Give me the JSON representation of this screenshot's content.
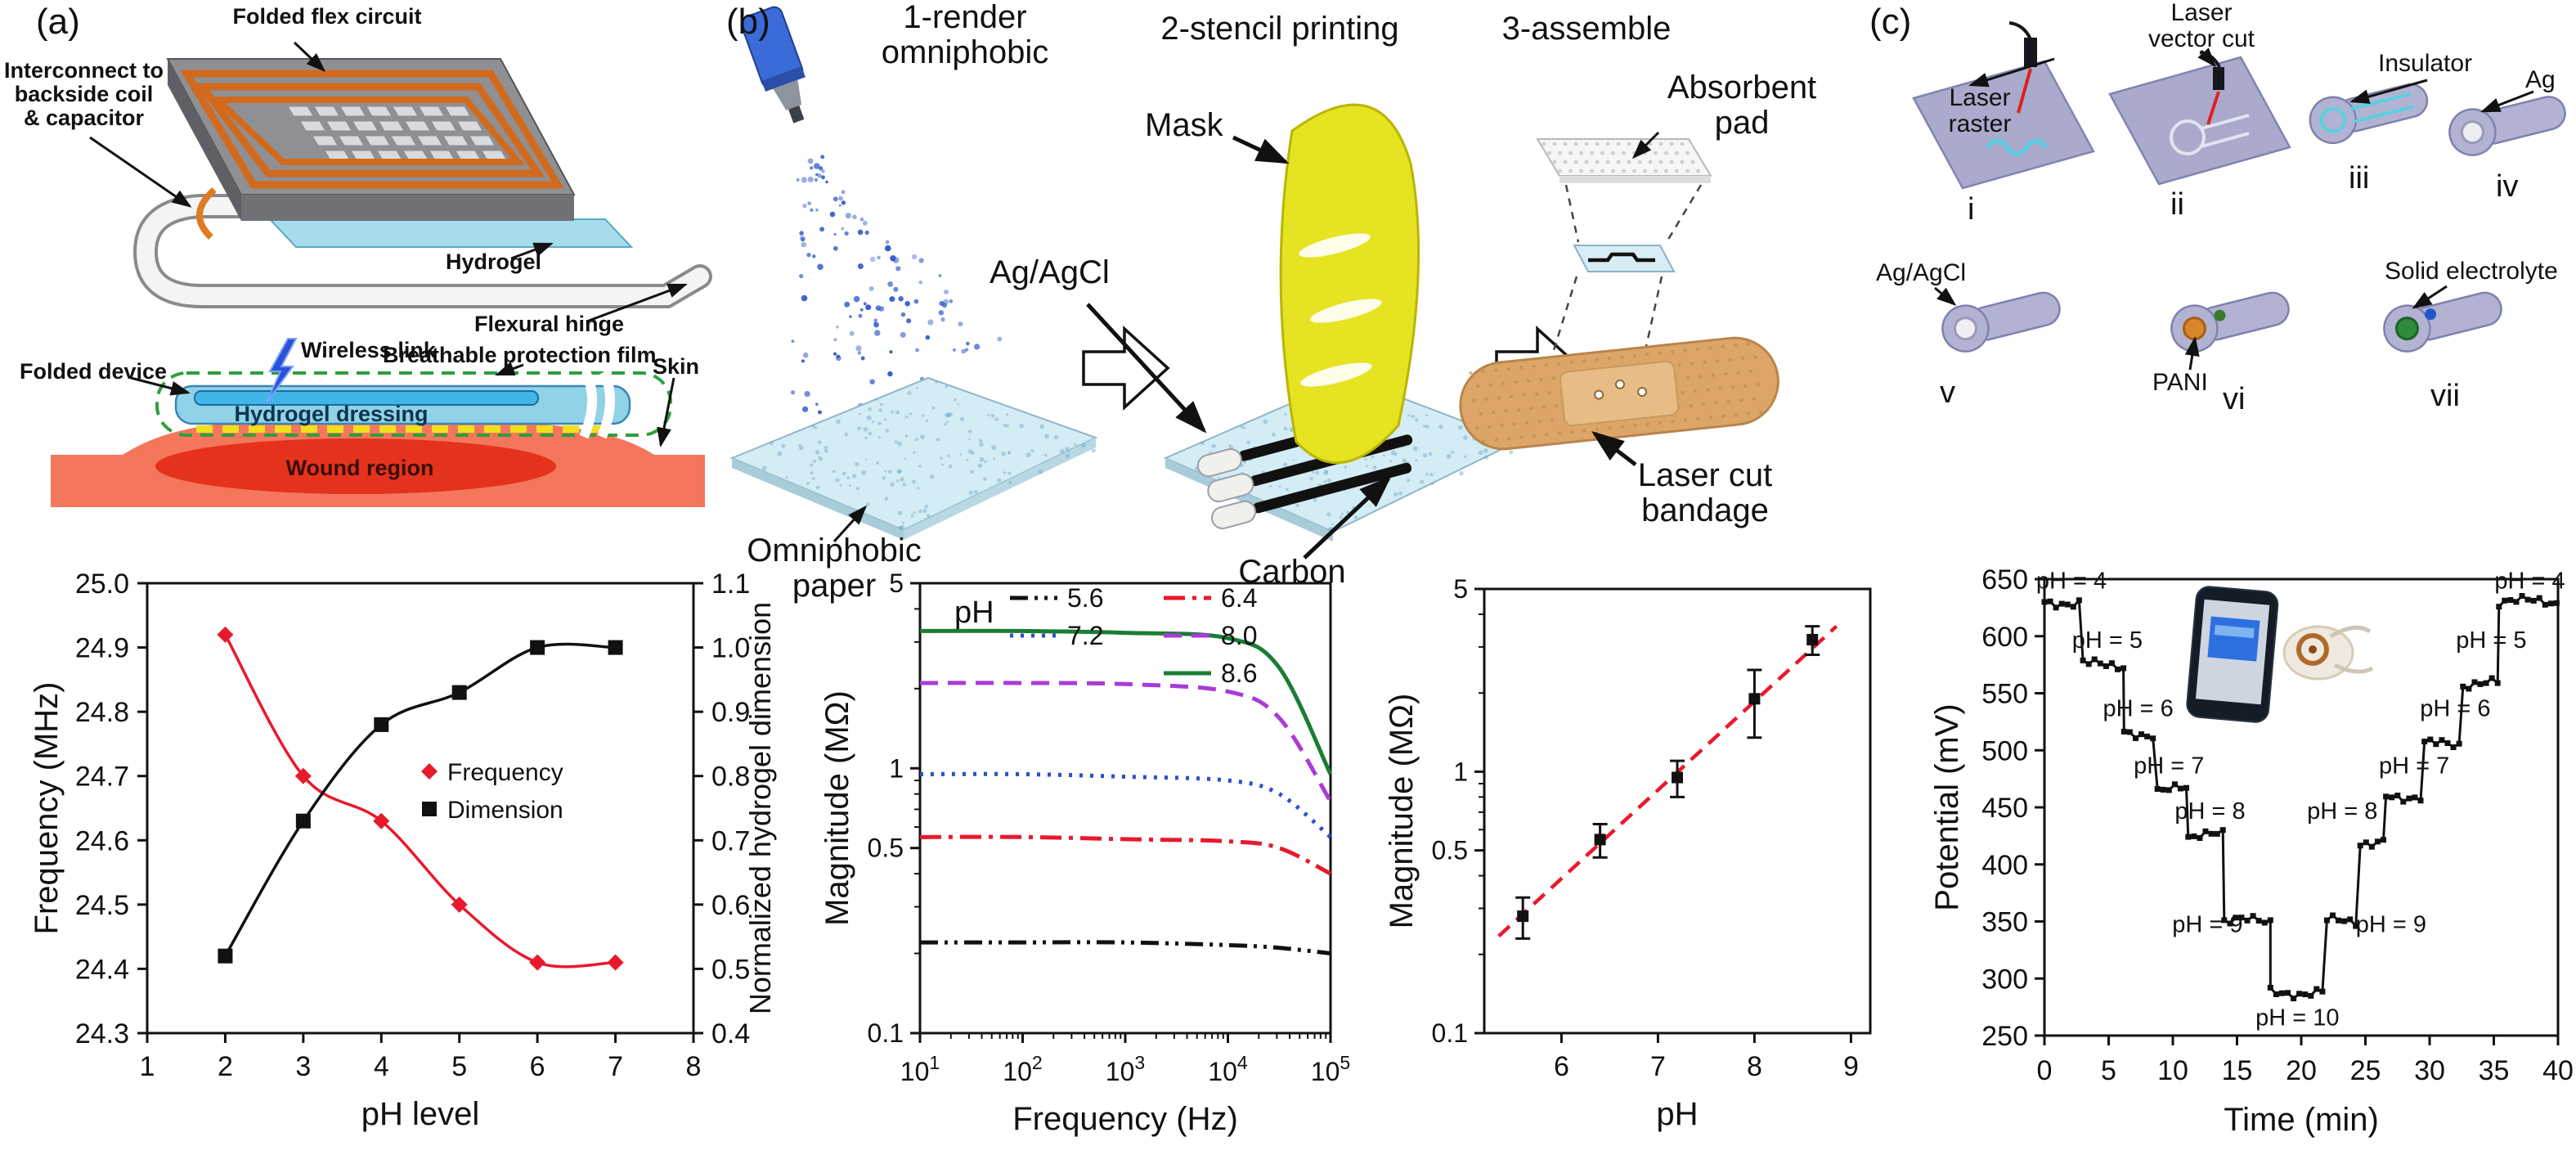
{
  "panel_a": {
    "tag": "(a)",
    "labels": {
      "folded_flex_circuit": "Folded flex circuit",
      "interconnect": "Interconnect to\nbackside coil\n& capacitor",
      "hydrogel": "Hydrogel",
      "flexural_hinge": "Flexural hinge",
      "wireless_link": "Wireless link",
      "folded_device": "Folded device",
      "breathable_film": "Breathable protection film",
      "skin": "Skin",
      "hydrogel_dressing": "Hydrogel dressing",
      "wound_region": "Wound region"
    }
  },
  "panel_b": {
    "tag": "(b)",
    "steps": {
      "step1": "1-render\nomniphobic",
      "step2": "2-stencil printing",
      "step3": "3-assemble"
    },
    "labels": {
      "mask": "Mask",
      "ag_agcl": "Ag/AgCl",
      "absorbent_pad": "Absorbent\npad",
      "omniphobic_paper": "Omniphobic\npaper",
      "carbon": "Carbon",
      "laser_cut_bandage": "Laser cut bandage"
    }
  },
  "panel_c": {
    "tag": "(c)",
    "labels": {
      "laser_raster": "Laser\nraster",
      "laser_vector_cut": "Laser\nvector cut",
      "insulator": "Insulator",
      "ag": "Ag",
      "ag_agcl": "Ag/AgCl",
      "pani": "PANI",
      "solid_electrolyte": "Solid electrolyte"
    },
    "numerals": {
      "i": "i",
      "ii": "ii",
      "iii": "iii",
      "iv": "iv",
      "v": "v",
      "vi": "vi",
      "vii": "vii"
    }
  },
  "chart_data": [
    {
      "id": "chart1",
      "type": "scatter",
      "xlabel": "pH level",
      "ylabel_left": "Frequency (MHz)",
      "ylabel_right": "Normalized hydrogel dimension",
      "xlim": [
        1,
        8
      ],
      "ylim_left": [
        24.3,
        25.0
      ],
      "ylim_right": [
        0.4,
        1.1
      ],
      "x_ticks": [
        1,
        2,
        3,
        4,
        5,
        6,
        7,
        8
      ],
      "y_ticks_left": [
        24.3,
        24.4,
        24.5,
        24.6,
        24.7,
        24.8,
        24.9,
        25.0
      ],
      "y_ticks_right": [
        0.4,
        0.5,
        0.6,
        0.7,
        0.8,
        0.9,
        1.0,
        1.1
      ],
      "grid": false,
      "legend_position": "center-right",
      "series": [
        {
          "name": "Frequ­ency",
          "axis": "left",
          "color": "#e8192c",
          "marker": "diamond",
          "x": [
            2,
            3,
            4,
            5,
            6,
            7
          ],
          "y": [
            24.92,
            24.7,
            24.63,
            24.5,
            24.41,
            24.41
          ]
        },
        {
          "name": "Dimension",
          "axis": "right",
          "color": "#111111",
          "marker": "square",
          "x": [
            2,
            3,
            4,
            5,
            6,
            7
          ],
          "y": [
            0.52,
            0.73,
            0.88,
            0.93,
            1.0,
            1.0
          ]
        }
      ]
    },
    {
      "id": "chart2",
      "type": "line",
      "x_scale": "log",
      "y_scale": "log",
      "xlabel": "Frequency (Hz)",
      "ylabel": "Magnitude (MΩ)",
      "xlim": [
        10,
        100000
      ],
      "ylim": [
        0.1,
        5
      ],
      "y_ticks": [
        5,
        1,
        0.5,
        0.1
      ],
      "y_minor_ticks": [
        0.2,
        0.3,
        0.4,
        0.6,
        0.7,
        0.8,
        0.9,
        2,
        3,
        4
      ],
      "legend_title": "pH",
      "legend_position": "top-left",
      "x": [
        10,
        100,
        1000,
        10000,
        31623,
        100000
      ],
      "series": [
        {
          "name": "5.6",
          "color": "#111111",
          "dash": "dash-dot-dot",
          "legend_col": 1,
          "legend_row": 1,
          "y": [
            0.22,
            0.22,
            0.22,
            0.215,
            0.21,
            0.2
          ]
        },
        {
          "name": "7.2",
          "color": "#2a4fd0",
          "dash": "dotted",
          "legend_col": 1,
          "legend_row": 2,
          "y": [
            0.95,
            0.95,
            0.93,
            0.9,
            0.8,
            0.55
          ]
        },
        {
          "name": "6.4",
          "color": "#e8192c",
          "dash": "dash-dot",
          "legend_col": 2,
          "legend_row": 1,
          "y": [
            0.55,
            0.55,
            0.54,
            0.53,
            0.5,
            0.4
          ]
        },
        {
          "name": "8.0",
          "color": "#a93bd6",
          "dash": "dashed",
          "legend_col": 2,
          "legend_row": 2,
          "y": [
            2.1,
            2.1,
            2.08,
            1.95,
            1.55,
            0.75
          ]
        },
        {
          "name": "8.6",
          "color": "#1a7d34",
          "dash": "solid",
          "legend_col": 2,
          "legend_row": 3,
          "y": [
            3.3,
            3.3,
            3.25,
            3.1,
            2.4,
            0.95
          ]
        }
      ]
    },
    {
      "id": "chart3",
      "type": "scatter",
      "y_scale": "log",
      "xlabel": "pH",
      "ylabel": "Magnitude (MΩ)",
      "xlim": [
        5.2,
        9.2
      ],
      "ylim": [
        0.1,
        5
      ],
      "x_ticks": [
        6,
        7,
        8,
        9
      ],
      "y_ticks": [
        5,
        1,
        0.5,
        0.1
      ],
      "y_minor_ticks": [
        0.2,
        0.3,
        0.4,
        0.6,
        0.7,
        0.8,
        0.9,
        2,
        3,
        4
      ],
      "points": {
        "x": [
          5.6,
          6.4,
          7.2,
          8.0,
          8.6
        ],
        "y": [
          0.28,
          0.55,
          0.95,
          1.9,
          3.2
        ],
        "yerr": [
          0.05,
          0.08,
          0.15,
          0.55,
          0.4
        ]
      },
      "fit": {
        "color": "#e8192c",
        "style": "dashed",
        "x1": 5.35,
        "y1": 0.235,
        "x2": 8.85,
        "y2": 3.6
      }
    },
    {
      "id": "chart4",
      "type": "step-line",
      "xlabel": "Time (min)",
      "ylabel": "Potential (mV)",
      "xlim": [
        0,
        40
      ],
      "ylim": [
        250,
        650
      ],
      "x_ticks": [
        0,
        5,
        10,
        15,
        20,
        25,
        30,
        35,
        40
      ],
      "y_ticks": [
        250,
        300,
        350,
        400,
        450,
        500,
        550,
        600,
        650
      ],
      "line_color": "#111111",
      "segments": [
        {
          "t0": 0.0,
          "t1": 3.0,
          "mv": 630
        },
        {
          "t0": 3.0,
          "t1": 6.2,
          "mv": 575
        },
        {
          "t0": 6.2,
          "t1": 8.8,
          "mv": 515
        },
        {
          "t0": 8.8,
          "t1": 11.2,
          "mv": 465
        },
        {
          "t0": 11.2,
          "t1": 14.0,
          "mv": 425
        },
        {
          "t0": 14.0,
          "t1": 17.6,
          "mv": 350
        },
        {
          "t0": 17.6,
          "t1": 22.0,
          "mv": 288
        },
        {
          "t0": 22.0,
          "t1": 24.6,
          "mv": 350
        },
        {
          "t0": 24.6,
          "t1": 26.6,
          "mv": 420
        },
        {
          "t0": 26.6,
          "t1": 29.6,
          "mv": 460
        },
        {
          "t0": 29.6,
          "t1": 32.6,
          "mv": 505
        },
        {
          "t0": 32.6,
          "t1": 35.4,
          "mv": 558
        },
        {
          "t0": 35.4,
          "t1": 40.0,
          "mv": 630
        }
      ],
      "annotations": [
        {
          "t": 2.1,
          "mv": 649,
          "text": "pH = 4"
        },
        {
          "t": 4.9,
          "mv": 597,
          "text": "pH = 5"
        },
        {
          "t": 7.3,
          "mv": 537,
          "text": "pH = 6"
        },
        {
          "t": 9.7,
          "mv": 487,
          "text": "pH = 7"
        },
        {
          "t": 12.9,
          "mv": 447,
          "text": "pH = 8"
        },
        {
          "t": 12.7,
          "mv": 348,
          "text": "pH = 9"
        },
        {
          "t": 19.7,
          "mv": 266,
          "text": "pH = 10"
        },
        {
          "t": 27.0,
          "mv": 348,
          "text": "pH = 9"
        },
        {
          "t": 23.2,
          "mv": 447,
          "text": "pH = 8"
        },
        {
          "t": 28.8,
          "mv": 487,
          "text": "pH = 7"
        },
        {
          "t": 32.0,
          "mv": 537,
          "text": "pH = 6"
        },
        {
          "t": 34.8,
          "mv": 597,
          "text": "pH = 5"
        },
        {
          "t": 37.8,
          "mv": 649,
          "text": "pH = 4"
        }
      ]
    }
  ]
}
